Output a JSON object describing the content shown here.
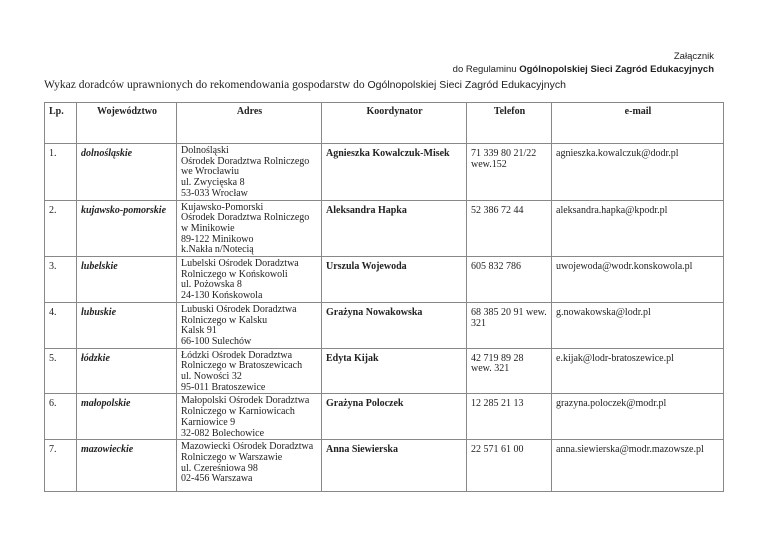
{
  "annex": {
    "line1": "Załącznik",
    "line2_prefix": "do Regulaminu ",
    "line2_bold": "Ogólnopolskiej Sieci Zagród Edukacyjnych"
  },
  "title": {
    "main": "Wykaz doradców uprawnionych do rekomendowania gospodarstw do ",
    "suffix": "Ogólnopolskiej Sieci Zagród Edukacyjnych"
  },
  "table": {
    "headers": [
      "Lp.",
      "Województwo",
      "Adres",
      "Koordynator",
      "Telefon",
      "e-mail"
    ],
    "rows": [
      {
        "lp": "1.",
        "woj": "dolnośląskie",
        "addr": [
          "Dolnośląski",
          "Ośrodek Doradztwa Rolniczego",
          "we Wrocławiu",
          "ul. Zwycięska 8",
          "53-033 Wrocław"
        ],
        "koord": "Agnieszka Kowalczuk-Misek",
        "tel": [
          "71 339 80 21/22",
          "wew.152"
        ],
        "mail": "agnieszka.kowalczuk@dodr.pl"
      },
      {
        "lp": "2.",
        "woj": "kujawsko-pomorskie",
        "addr": [
          "Kujawsko-Pomorski",
          "Ośrodek Doradztwa Rolniczego",
          "w Minikowie",
          "89-122 Minikowo",
          "k.Nakła n/Notecią"
        ],
        "koord": "Aleksandra Hapka",
        "tel": [
          "52 386 72 44",
          ""
        ],
        "mail": "aleksandra.hapka@kpodr.pl"
      },
      {
        "lp": "3.",
        "woj": "lubelskie",
        "addr": [
          "Lubelski Ośrodek Doradztwa",
          "Rolniczego w Końskowoli",
          "ul. Pożowska 8",
          "24-130 Końskowola",
          ""
        ],
        "koord": "Urszula Wojewoda",
        "tel": [
          "605 832 786",
          ""
        ],
        "mail": "uwojewoda@wodr.konskowola.pl"
      },
      {
        "lp": "4.",
        "woj": "lubuskie",
        "addr": [
          "Lubuski Ośrodek Doradztwa",
          "Rolniczego w Kalsku",
          "Kalsk 91",
          "66-100 Sulechów",
          ""
        ],
        "koord": "Grażyna Nowakowska",
        "tel": [
          "68 385 20 91 wew.",
          "321"
        ],
        "mail": "g.nowakowska@lodr.pl"
      },
      {
        "lp": "5.",
        "woj": "łódzkie",
        "addr": [
          "Łódzki  Ośrodek Doradztwa",
          "Rolniczego w Bratoszewicach",
          "ul. Nowości 32",
          "95-011 Bratoszewice",
          ""
        ],
        "koord": "Edyta Kijak",
        "tel": [
          "42 719 89 28",
          "wew. 321"
        ],
        "mail": "e.kijak@lodr-bratoszewice.pl"
      },
      {
        "lp": "6.",
        "woj": "małopolskie",
        "addr": [
          "Małopolski Ośrodek Doradztwa",
          "Rolniczego w Karniowicach",
          "Karniowice 9",
          "32-082 Bolechowice",
          ""
        ],
        "koord": "Grażyna Poloczek",
        "tel": [
          "12 285 21 13",
          ""
        ],
        "mail": "grazyna.poloczek@modr.pl"
      },
      {
        "lp": "7.",
        "woj": "mazowieckie",
        "addr": [
          "Mazowiecki Ośrodek Doradztwa",
          "Rolniczego w Warszawie",
          "ul. Czereśniowa 98",
          "02-456 Warszawa",
          ""
        ],
        "koord": "Anna Siewierska",
        "tel": [
          "22 571 61 00",
          ""
        ],
        "mail": "anna.siewierska@modr.mazowsze.pl"
      }
    ]
  }
}
